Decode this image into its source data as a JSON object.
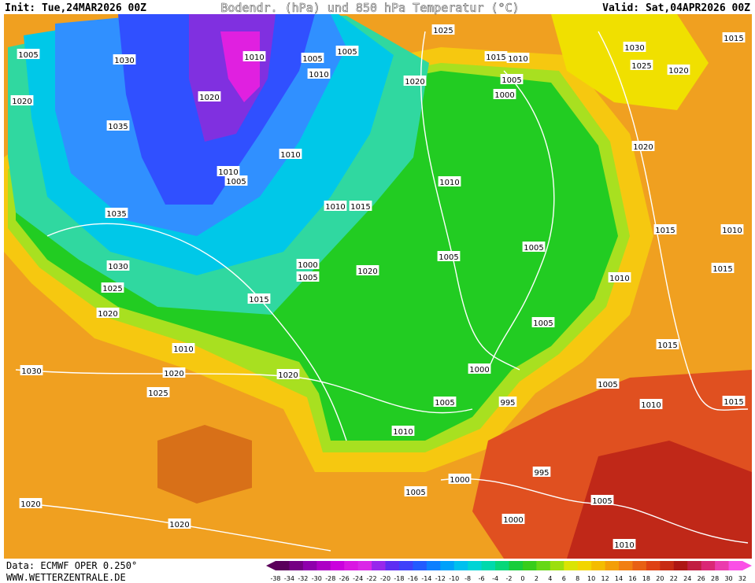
{
  "header": {
    "init": "Init: Tue,24MAR2026 00Z",
    "title": "Bodendr. (hPa) und 850 hPa Temperatur (°C)",
    "valid": "Valid: Sat,04APR2026 00Z"
  },
  "isobar_labels": [
    "1025",
    "1015",
    "1005",
    "1030",
    "1010",
    "1005",
    "1005",
    "1010",
    "1015",
    "1010",
    "1030",
    "1025",
    "1020",
    "1005",
    "1020",
    "1000",
    "1020",
    "1020",
    "1035",
    "1010",
    "1020",
    "1010",
    "1005",
    "1010",
    "1010",
    "1015",
    "1035",
    "1015",
    "1010",
    "1005",
    "1005",
    "1000",
    "1030",
    "1020",
    "1005",
    "1015",
    "1010",
    "1025",
    "1015",
    "1020",
    "1005",
    "1015",
    "1010",
    "1030",
    "1020",
    "1020",
    "1000",
    "1005",
    "1025",
    "1005",
    "995",
    "1010",
    "1015",
    "1010",
    "995",
    "1000",
    "1005",
    "1005",
    "1020",
    "1000",
    "1020",
    "1010"
  ],
  "footer": {
    "source": "Data: ECMWF OPER 0.250°",
    "website": "WWW.WETTERZENTRALE.DE"
  },
  "legend": {
    "labels": [
      "-38",
      "-34",
      "-32",
      "-30",
      "-28",
      "-26",
      "-24",
      "-22",
      "-20",
      "-18",
      "-16",
      "-14",
      "-12",
      "-10",
      "-8",
      "-6",
      "-4",
      "-2",
      "0",
      "2",
      "4",
      "6",
      "8",
      "10",
      "12",
      "14",
      "16",
      "18",
      "20",
      "22",
      "24",
      "26",
      "28",
      "30",
      "32"
    ]
  }
}
